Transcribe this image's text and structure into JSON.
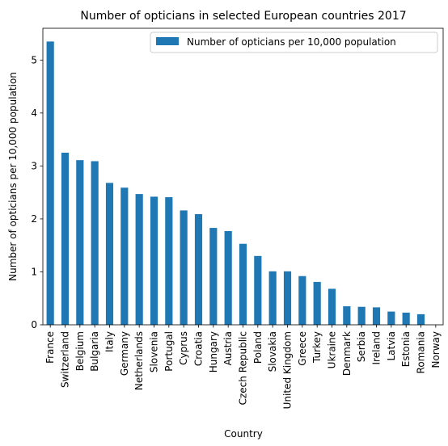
{
  "chart_data": {
    "type": "bar",
    "title": "Number of opticians in selected European countries 2017",
    "xlabel": "Country",
    "ylabel": "Number of opticians per 10,000 population",
    "ylim": [
      0,
      5.6
    ],
    "yticks": [
      0,
      1,
      2,
      3,
      4,
      5
    ],
    "grid": false,
    "legend_position": "top-right",
    "bar_color": "#1f77b4",
    "categories": [
      "France",
      "Switzerland",
      "Belgium",
      "Bulgaria",
      "Italy",
      "Germany",
      "Netherlands",
      "Slovenia",
      "Portugal",
      "Cyprus",
      "Croatia",
      "Hungary",
      "Austria",
      "Czech Republic",
      "Poland",
      "Slovakia",
      "United Kingdom",
      "Greece",
      "Turkey",
      "Ukraine",
      "Denmark",
      "Serbia",
      "Ireland",
      "Latvia",
      "Estonia",
      "Romania",
      "Norway"
    ],
    "series": [
      {
        "name": "Number of opticians per 10,000 population",
        "values": [
          5.35,
          3.25,
          3.11,
          3.09,
          2.68,
          2.59,
          2.47,
          2.42,
          2.41,
          2.16,
          2.09,
          1.83,
          1.77,
          1.53,
          1.3,
          1.01,
          1.01,
          0.92,
          0.81,
          0.68,
          0.35,
          0.34,
          0.33,
          0.25,
          0.23,
          0.2,
          0.0
        ]
      }
    ]
  }
}
